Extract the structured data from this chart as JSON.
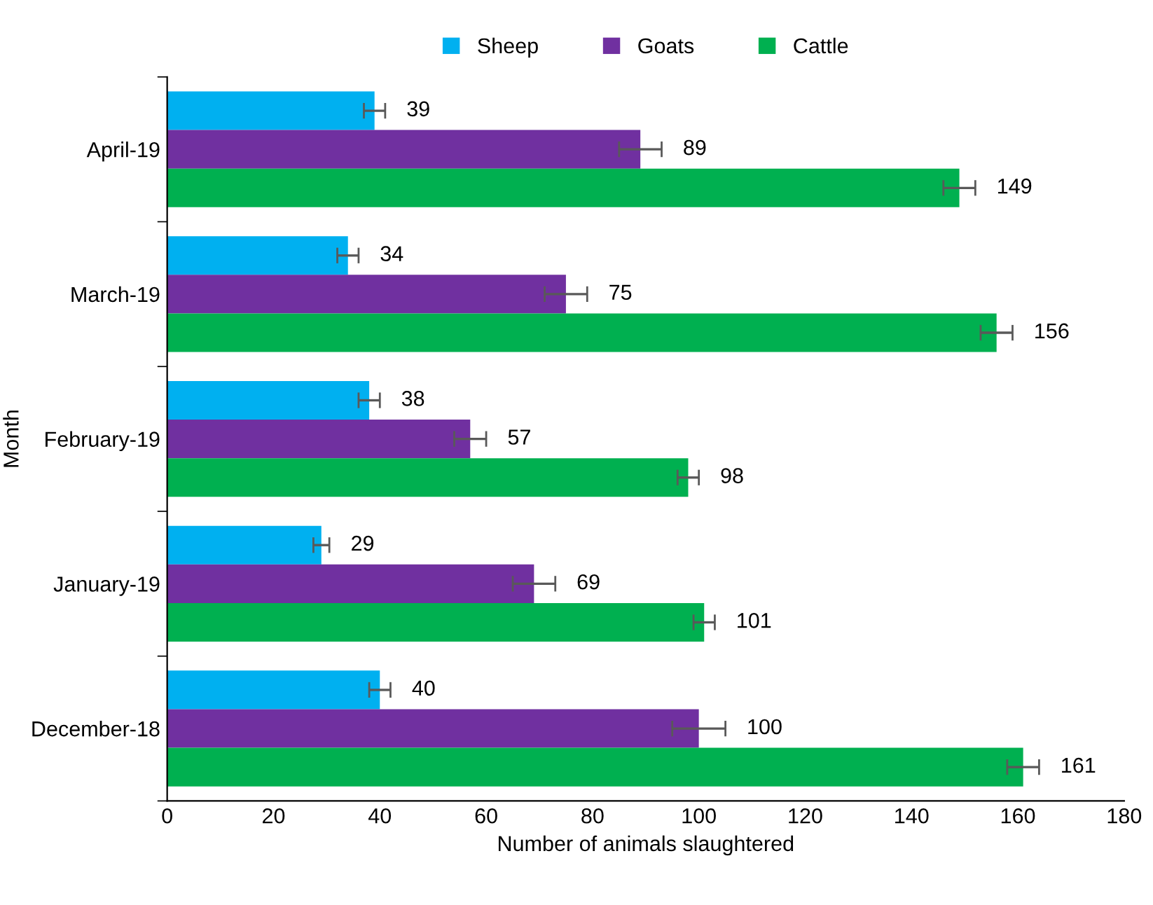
{
  "chart_data": {
    "type": "bar",
    "orientation": "horizontal",
    "ylabel": "Month",
    "xlabel": "Number of animals slaughtered",
    "categories": [
      "April-19",
      "March-19",
      "February-19",
      "January-19",
      "December-18"
    ],
    "series": [
      {
        "name": "Sheep",
        "color": "#00b0f0",
        "values": [
          39,
          34,
          38,
          29,
          40
        ],
        "errors": [
          2,
          2,
          2,
          1.5,
          2
        ]
      },
      {
        "name": "Goats",
        "color": "#7030a0",
        "values": [
          89,
          75,
          57,
          69,
          100
        ],
        "errors": [
          4,
          4,
          3,
          4,
          5
        ]
      },
      {
        "name": "Cattle",
        "color": "#00b050",
        "values": [
          149,
          156,
          98,
          101,
          161
        ],
        "errors": [
          3,
          3,
          2,
          2,
          3
        ]
      }
    ],
    "xlim": [
      0,
      180
    ],
    "xticks": [
      0,
      20,
      40,
      60,
      80,
      100,
      120,
      140,
      160,
      180
    ],
    "data_labels": true,
    "legend": "top",
    "grid": false
  }
}
